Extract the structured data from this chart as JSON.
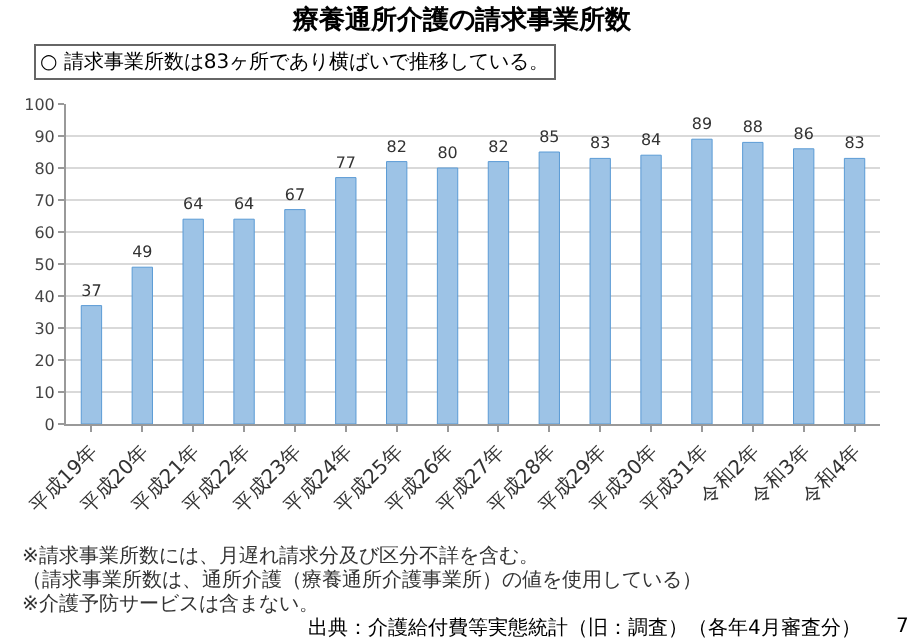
{
  "chart_data": {
    "type": "bar",
    "title": "療養通所介護の請求事業所数",
    "subtitle": "○ 請求事業所数は83ヶ所であり横ばいで推移している。",
    "categories": [
      "平成19年",
      "平成20年",
      "平成21年",
      "平成22年",
      "平成23年",
      "平成24年",
      "平成25年",
      "平成26年",
      "平成27年",
      "平成28年",
      "平成29年",
      "平成30年",
      "平成31年",
      "令和2年",
      "令和3年",
      "令和4年"
    ],
    "values": [
      37,
      49,
      64,
      64,
      67,
      77,
      82,
      80,
      82,
      85,
      83,
      84,
      89,
      88,
      86,
      83
    ],
    "color": "#9dc3e6",
    "ylim": [
      0,
      100
    ],
    "yticks": [
      0,
      10,
      20,
      30,
      40,
      50,
      60,
      70,
      80,
      90,
      100
    ],
    "grid": "y",
    "data_labels": true,
    "annotations": [
      "※請求事業所数には、月遅れ請求分及び区分不詳を含む。",
      "（請求事業所数は、通所介護（療養通所介護事業所）の値を使用している）",
      "※介護予防サービスは含まない。",
      "出典：介護給付費等実態統計（旧：調査）（各年4月審査分）",
      "7"
    ]
  }
}
